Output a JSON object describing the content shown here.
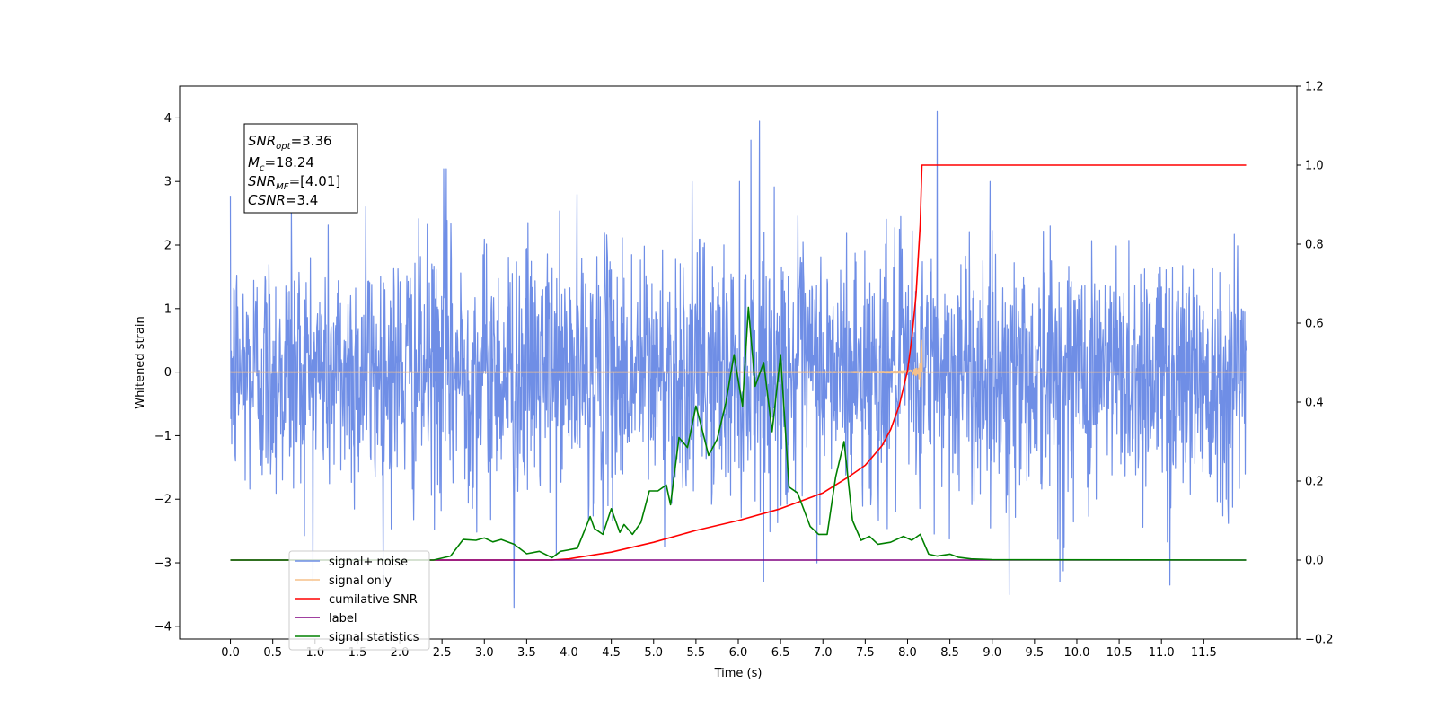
{
  "chart_data": {
    "type": "line",
    "xlabel": "Time (s)",
    "ylabel": "Whitened strain",
    "xlim": [
      -0.6,
      12.6
    ],
    "ylim": [
      -4.2,
      4.5
    ],
    "ylim_right": [
      -0.2,
      1.2
    ],
    "x_ticks": [
      "0.0",
      "0.5",
      "1.0",
      "1.5",
      "2.0",
      "2.5",
      "3.0",
      "3.5",
      "4.0",
      "4.5",
      "5.0",
      "5.5",
      "6.0",
      "6.5",
      "7.0",
      "7.5",
      "8.0",
      "8.5",
      "9.0",
      "9.5",
      "10.0",
      "10.5",
      "11.0",
      "11.5"
    ],
    "y_ticks_left": [
      "4",
      "3",
      "2",
      "1",
      "0",
      "−1",
      "−2",
      "−3",
      "−4"
    ],
    "y_ticks_right": [
      "1.2",
      "1.0",
      "0.8",
      "0.6",
      "0.4",
      "0.2",
      "0.0",
      "−0.2"
    ],
    "legend_position": "lower-left",
    "annotations": {
      "snr_opt": "=3.36",
      "mc": "=18.24",
      "snr_mf": "=[4.01]",
      "csnr": "=3.4"
    },
    "series": [
      {
        "name": "signal+ noise",
        "axis": "left",
        "color": "#6f8ee6",
        "style": "noise",
        "x_range": [
          0,
          12
        ],
        "sigma": 1.0,
        "spikes": [
          {
            "x": 0.72,
            "y": 2.6
          },
          {
            "x": 1.6,
            "y": 2.6
          },
          {
            "x": 2.52,
            "y": 3.2
          },
          {
            "x": 3.35,
            "y": -3.7
          },
          {
            "x": 6.15,
            "y": 3.65
          },
          {
            "x": 6.25,
            "y": 3.95
          },
          {
            "x": 8.35,
            "y": 4.1
          },
          {
            "x": 9.2,
            "y": -3.5
          },
          {
            "x": 9.8,
            "y": -3.3
          },
          {
            "x": 11.1,
            "y": -3.35
          },
          {
            "x": 2.55,
            "y": 3.2
          }
        ]
      },
      {
        "name": "signal only",
        "axis": "left",
        "color": "#f5c18a",
        "style": "chirp",
        "x_range": [
          0,
          12
        ],
        "t_merge": 8.17,
        "peak_amplitude": 0.55
      },
      {
        "name": "cumilative SNR",
        "axis": "right",
        "color": "#ff0000",
        "x": [
          0,
          3.8,
          4.0,
          4.5,
          5.0,
          5.5,
          6.0,
          6.5,
          7.0,
          7.3,
          7.5,
          7.7,
          7.8,
          7.9,
          8.0,
          8.05,
          8.1,
          8.15,
          8.17,
          12.0
        ],
        "values": [
          0,
          0,
          0.003,
          0.02,
          0.045,
          0.075,
          0.1,
          0.13,
          0.17,
          0.21,
          0.24,
          0.29,
          0.33,
          0.39,
          0.48,
          0.56,
          0.67,
          0.85,
          1.0,
          1.0
        ]
      },
      {
        "name": "label",
        "axis": "right",
        "color": "#800080",
        "x": [
          0,
          12
        ],
        "values": [
          0,
          0
        ]
      },
      {
        "name": "signal statistics",
        "axis": "right",
        "color": "#008000",
        "x": [
          0,
          2.4,
          2.6,
          2.75,
          2.9,
          3.0,
          3.1,
          3.2,
          3.35,
          3.5,
          3.65,
          3.8,
          3.9,
          4.0,
          4.1,
          4.25,
          4.3,
          4.4,
          4.5,
          4.6,
          4.65,
          4.75,
          4.85,
          4.95,
          5.05,
          5.15,
          5.2,
          5.3,
          5.4,
          5.5,
          5.55,
          5.65,
          5.75,
          5.85,
          5.95,
          6.05,
          6.12,
          6.2,
          6.3,
          6.4,
          6.5,
          6.6,
          6.7,
          6.85,
          6.95,
          7.05,
          7.15,
          7.25,
          7.35,
          7.45,
          7.55,
          7.65,
          7.8,
          7.95,
          8.05,
          8.15,
          8.25,
          8.35,
          8.5,
          8.6,
          8.75,
          9.0,
          12.0
        ],
        "values": [
          0,
          0,
          0.01,
          0.052,
          0.05,
          0.056,
          0.046,
          0.052,
          0.04,
          0.016,
          0.022,
          0.006,
          0.022,
          0.026,
          0.03,
          0.11,
          0.08,
          0.065,
          0.13,
          0.07,
          0.09,
          0.065,
          0.095,
          0.175,
          0.175,
          0.19,
          0.14,
          0.31,
          0.285,
          0.39,
          0.35,
          0.265,
          0.305,
          0.395,
          0.52,
          0.39,
          0.64,
          0.44,
          0.5,
          0.325,
          0.52,
          0.185,
          0.17,
          0.085,
          0.065,
          0.065,
          0.21,
          0.3,
          0.1,
          0.05,
          0.06,
          0.04,
          0.045,
          0.06,
          0.05,
          0.065,
          0.015,
          0.01,
          0.015,
          0.007,
          0.003,
          0.001,
          0
        ]
      }
    ]
  }
}
